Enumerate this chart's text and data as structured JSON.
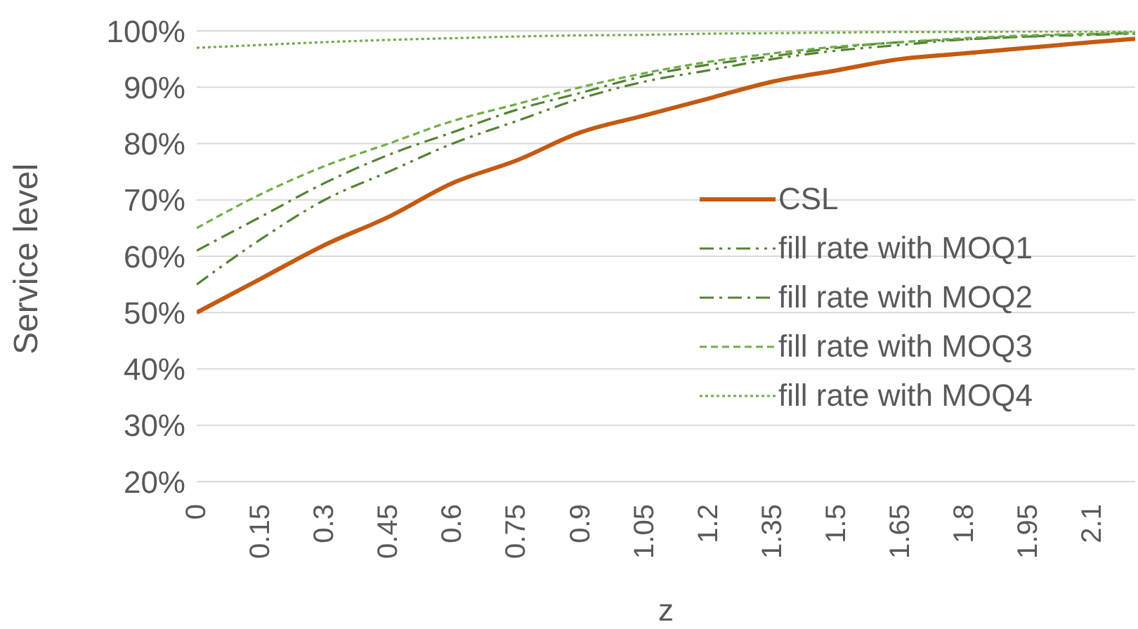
{
  "chart_data": {
    "type": "line",
    "xlabel": "z",
    "ylabel": "Service level",
    "x": [
      0,
      0.15,
      0.3,
      0.45,
      0.6,
      0.75,
      0.9,
      1.05,
      1.2,
      1.35,
      1.5,
      1.65,
      1.8,
      1.95,
      2.1,
      2.2
    ],
    "series": [
      {
        "name": "CSL",
        "color": "#c55a11",
        "line_style": "solid",
        "values": [
          50,
          56,
          62,
          67,
          73,
          77,
          82,
          85,
          88,
          91,
          93,
          95,
          96,
          97,
          98,
          98.6
        ]
      },
      {
        "name": "fill rate with MOQ1",
        "color": "#548235",
        "line_style": "dashdotdot",
        "values": [
          55,
          63,
          70,
          75,
          80,
          84,
          88,
          91,
          93,
          95,
          96.5,
          97.5,
          98.5,
          99,
          99.3,
          99.5
        ]
      },
      {
        "name": "fill rate with MOQ2",
        "color": "#548235",
        "line_style": "dashdot",
        "values": [
          61,
          67,
          73,
          78,
          82,
          86,
          89,
          92,
          94,
          95.5,
          97,
          98,
          98.5,
          99,
          99.4,
          99.6
        ]
      },
      {
        "name": "fill rate with MOQ3",
        "color": "#70ad47",
        "line_style": "dashed",
        "values": [
          65,
          71,
          76,
          80,
          84,
          87,
          90,
          92.5,
          94.5,
          96,
          97.2,
          98,
          98.7,
          99.2,
          99.5,
          99.7
        ]
      },
      {
        "name": "fill rate with MOQ4",
        "color": "#70ad47",
        "line_style": "dotted",
        "values": [
          97,
          97.5,
          98,
          98.4,
          98.7,
          99,
          99.2,
          99.3,
          99.5,
          99.6,
          99.7,
          99.8,
          99.8,
          99.9,
          99.9,
          99.9
        ]
      }
    ],
    "xlim": [
      0,
      2.2
    ],
    "xticks": [
      0,
      0.15,
      0.3,
      0.45,
      0.6,
      0.75,
      0.9,
      1.05,
      1.2,
      1.35,
      1.5,
      1.65,
      1.8,
      1.95,
      2.1
    ],
    "ylim": [
      20,
      100
    ],
    "yticks": [
      {
        "value": 20,
        "label": "20%"
      },
      {
        "value": 30,
        "label": "30%"
      },
      {
        "value": 40,
        "label": "40%"
      },
      {
        "value": 50,
        "label": "50%"
      },
      {
        "value": 60,
        "label": "60%"
      },
      {
        "value": 70,
        "label": "70%"
      },
      {
        "value": 80,
        "label": "80%"
      },
      {
        "value": 90,
        "label": "90%"
      },
      {
        "value": 100,
        "label": "100%"
      }
    ],
    "grid": "y",
    "legend": "right",
    "marker": "none"
  }
}
